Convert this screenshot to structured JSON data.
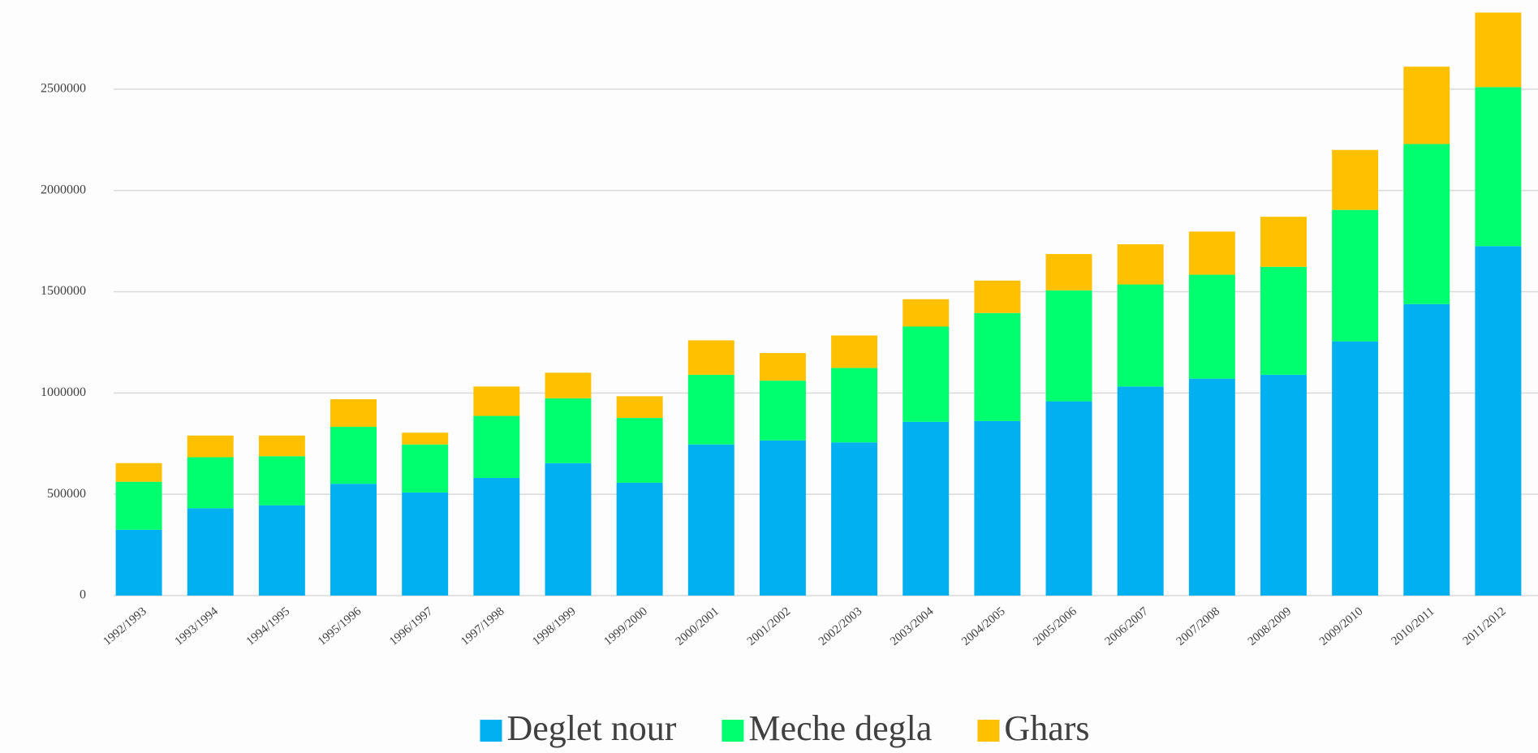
{
  "chart_data": {
    "type": "stacked_bar",
    "categories": [
      "1992/1993",
      "1993/1994",
      "1994/1995",
      "1995/1996",
      "1996/1997",
      "1997/1998",
      "1998/1999",
      "1999/2000",
      "2000/2001",
      "2001/2002",
      "2002/2003",
      "2003/2004",
      "2004/2005",
      "2005/2006",
      "2006/2007",
      "2007/2008",
      "2008/2009",
      "2009/2010",
      "2010/2011",
      "2011/2012"
    ],
    "series": [
      {
        "name": "Deglet nour",
        "color": "#00b0f0",
        "values": [
          325000,
          431000,
          446000,
          552000,
          509000,
          581000,
          654000,
          557000,
          746000,
          766000,
          756000,
          858000,
          862000,
          959000,
          1032000,
          1071000,
          1090000,
          1255000,
          1439000,
          1725000
        ]
      },
      {
        "name": "Meche degla",
        "color": "#00ff6e",
        "values": [
          237000,
          252000,
          242000,
          281000,
          237000,
          306000,
          320000,
          320000,
          344000,
          295000,
          368000,
          470000,
          533000,
          548000,
          504000,
          513000,
          533000,
          649000,
          790000,
          785000
        ]
      },
      {
        "name": "Ghars",
        "color": "#ffc000",
        "values": [
          92000,
          107000,
          102000,
          136000,
          58000,
          145000,
          126000,
          107000,
          170000,
          136000,
          160000,
          135000,
          160000,
          179000,
          198000,
          213000,
          247000,
          296000,
          382000,
          368000
        ]
      }
    ],
    "ylim": [
      0,
      2900000
    ],
    "yticks": [
      0,
      500000,
      1000000,
      1500000,
      2000000,
      2500000
    ],
    "grid": true,
    "legend": "bottom"
  }
}
